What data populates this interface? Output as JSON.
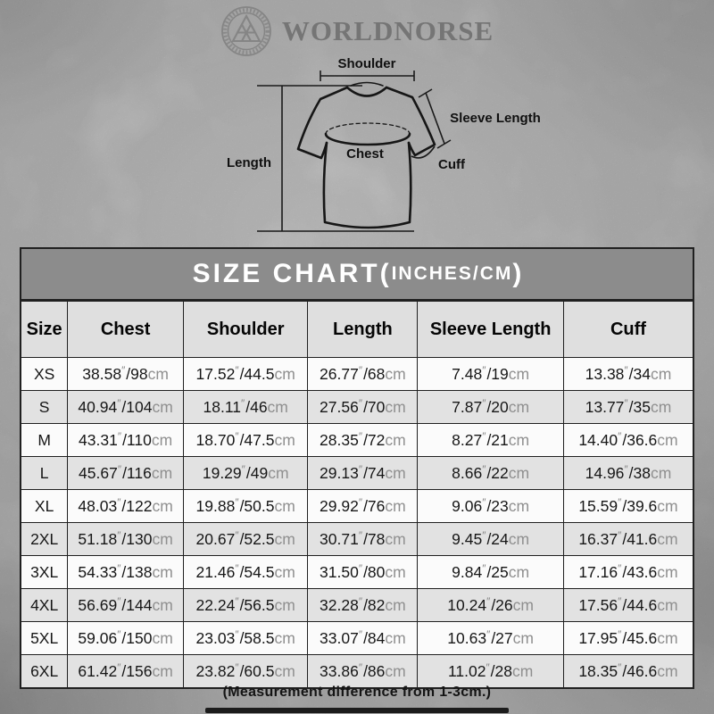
{
  "brand": {
    "name": "WORLDNORSE",
    "logo_icon": "valknut-emblem"
  },
  "diagram": {
    "labels": {
      "shoulder": "Shoulder",
      "sleeve_length": "Sleeve Length",
      "length": "Length",
      "chest": "Chest",
      "cuff": "Cuff"
    }
  },
  "size_chart": {
    "title_main": "SIZE CHART(",
    "title_sub": "INCHES/CM",
    "title_close": ")",
    "columns": [
      "Size",
      "Chest",
      "Shoulder",
      "Length",
      "Sleeve Length",
      "Cuff"
    ],
    "rows": [
      {
        "size": "XS",
        "chest": "38.58″/98cm",
        "shoulder": "17.52″/44.5cm",
        "length": "26.77″/68cm",
        "sleeve_length": "7.48″/19cm",
        "cuff": "13.38″/34cm"
      },
      {
        "size": "S",
        "chest": "40.94″/104cm",
        "shoulder": "18.11″/46cm",
        "length": "27.56″/70cm",
        "sleeve_length": "7.87″/20cm",
        "cuff": "13.77″/35cm"
      },
      {
        "size": "M",
        "chest": "43.31″/110cm",
        "shoulder": "18.70″/47.5cm",
        "length": "28.35″/72cm",
        "sleeve_length": "8.27″/21cm",
        "cuff": "14.40″/36.6cm"
      },
      {
        "size": "L",
        "chest": "45.67″/116cm",
        "shoulder": "19.29″/49cm",
        "length": "29.13″/74cm",
        "sleeve_length": "8.66″/22cm",
        "cuff": "14.96″/38cm"
      },
      {
        "size": "XL",
        "chest": "48.03″/122cm",
        "shoulder": "19.88″/50.5cm",
        "length": "29.92″/76cm",
        "sleeve_length": "9.06″/23cm",
        "cuff": "15.59″/39.6cm"
      },
      {
        "size": "2XL",
        "chest": "51.18″/130cm",
        "shoulder": "20.67″/52.5cm",
        "length": "30.71″/78cm",
        "sleeve_length": "9.45″/24cm",
        "cuff": "16.37″/41.6cm"
      },
      {
        "size": "3XL",
        "chest": "54.33″/138cm",
        "shoulder": "21.46″/54.5cm",
        "length": "31.50″/80cm",
        "sleeve_length": "9.84″/25cm",
        "cuff": "17.16″/43.6cm"
      },
      {
        "size": "4XL",
        "chest": "56.69″/144cm",
        "shoulder": "22.24″/56.5cm",
        "length": "32.28″/82cm",
        "sleeve_length": "10.24″/26cm",
        "cuff": "17.56″/44.6cm"
      },
      {
        "size": "5XL",
        "chest": "59.06″/150cm",
        "shoulder": "23.03″/58.5cm",
        "length": "33.07″/84cm",
        "sleeve_length": "10.63″/27cm",
        "cuff": "17.95″/45.6cm"
      },
      {
        "size": "6XL",
        "chest": "61.42″/156cm",
        "shoulder": "23.82″/60.5cm",
        "length": "33.86″/86cm",
        "sleeve_length": "11.02″/28cm",
        "cuff": "18.35″/46.6cm"
      }
    ],
    "footnote": "(Measurement difference from 1-3cm.)"
  },
  "colors": {
    "title_bar_bg": "#8c8c8c",
    "header_row_bg": "#dfdfdf",
    "row_bg": "#fbfbfb",
    "row_alt_bg": "#e2e2e2",
    "border": "#202020",
    "unit_text": "#8f8f8f",
    "brand_gray": "#757575"
  }
}
